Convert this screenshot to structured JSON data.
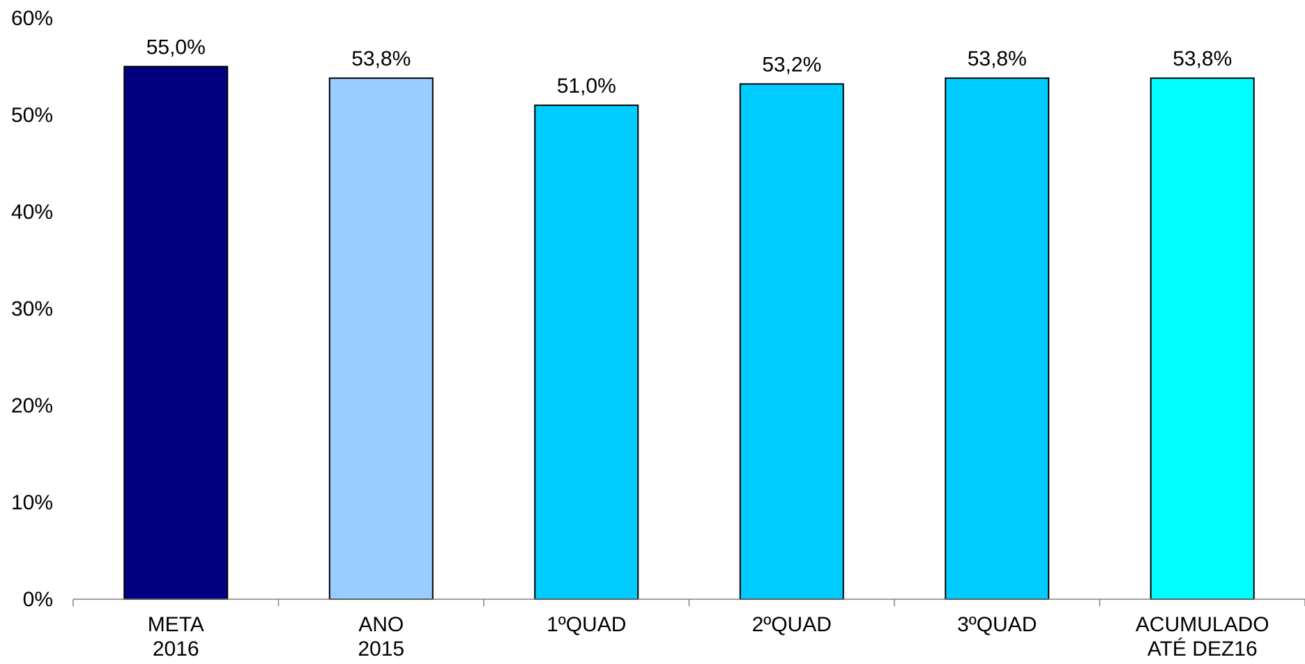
{
  "chart_data": {
    "type": "bar",
    "categories": [
      [
        "META",
        "2016"
      ],
      [
        "ANO",
        "2015"
      ],
      [
        "1ºQUAD"
      ],
      [
        "2ºQUAD"
      ],
      [
        "3ºQUAD"
      ],
      [
        "ACUMULADO",
        "ATÉ DEZ16"
      ]
    ],
    "values": [
      55.0,
      53.8,
      51.0,
      53.2,
      53.8,
      53.8
    ],
    "data_labels": [
      "55,0%",
      "53,8%",
      "51,0%",
      "53,2%",
      "53,8%",
      "53,8%"
    ],
    "bar_colors": [
      "#000080",
      "#99CCFF",
      "#00CCFF",
      "#00CCFF",
      "#00CCFF",
      "#00FFFF"
    ],
    "ylim": [
      0,
      60
    ],
    "yticks": [
      0,
      10,
      20,
      30,
      40,
      50,
      60
    ],
    "ytick_labels": [
      "0%",
      "10%",
      "20%",
      "30%",
      "40%",
      "50%",
      "60%"
    ],
    "title": "",
    "xlabel": "",
    "ylabel": "",
    "grid": false,
    "legend": false
  }
}
